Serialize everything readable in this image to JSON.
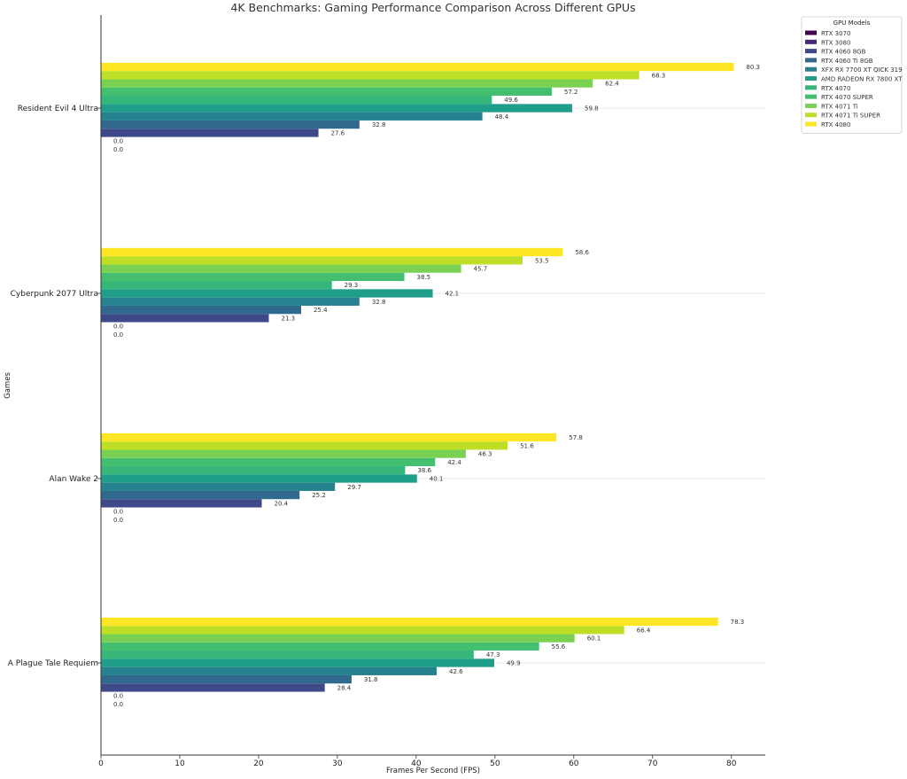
{
  "chart_data": {
    "type": "bar",
    "orientation": "horizontal",
    "title": "4K Benchmarks: Gaming Performance Comparison Across Different GPUs",
    "xlabel": "Frames Per Second (FPS)",
    "ylabel": "Games",
    "xlim": [
      0,
      84.3
    ],
    "xticks": [
      0,
      10,
      20,
      30,
      40,
      50,
      60,
      70,
      80
    ],
    "categories": [
      "Resident Evil 4 Ultra",
      "Cyberpunk 2077 Ultra",
      "Alan Wake 2",
      "A Plague Tale Requiem"
    ],
    "legend_title": "GPU Models",
    "legend_position": "top-right",
    "grid": "horizontal lines at category centers",
    "series": [
      {
        "name": "RTX 3070",
        "color": "#440154",
        "values": [
          0.0,
          0.0,
          0.0,
          0.0
        ]
      },
      {
        "name": "RTX 3080",
        "color": "#482878",
        "values": [
          0.0,
          0.0,
          0.0,
          0.0
        ]
      },
      {
        "name": "RTX 4060 8GB",
        "color": "#3e4989",
        "values": [
          27.6,
          21.3,
          20.4,
          28.4
        ]
      },
      {
        "name": "RTX 4060 Ti 8GB",
        "color": "#31688e",
        "values": [
          32.8,
          25.4,
          25.2,
          31.8
        ]
      },
      {
        "name": "XFX RX 7700 XT QICK 319",
        "color": "#26828e",
        "values": [
          48.4,
          32.8,
          29.7,
          42.6
        ]
      },
      {
        "name": "AMD RADEON RX 7800 XT",
        "color": "#1f9e89",
        "values": [
          59.8,
          42.1,
          40.1,
          49.9
        ]
      },
      {
        "name": "RTX 4070",
        "color": "#35b779",
        "values": [
          49.6,
          29.3,
          38.6,
          47.3
        ]
      },
      {
        "name": "RTX 4070 SUPER",
        "color": "#44bf70",
        "values": [
          57.2,
          38.5,
          42.4,
          55.6
        ]
      },
      {
        "name": "RTX 4071 Ti",
        "color": "#7ad151",
        "values": [
          62.4,
          45.7,
          46.3,
          60.1
        ]
      },
      {
        "name": "RTX 4071 Ti SUPER",
        "color": "#bddf26",
        "values": [
          68.3,
          53.5,
          51.6,
          66.4
        ]
      },
      {
        "name": "RTX 4080",
        "color": "#fde725",
        "values": [
          80.3,
          58.6,
          57.8,
          78.3
        ]
      }
    ]
  }
}
